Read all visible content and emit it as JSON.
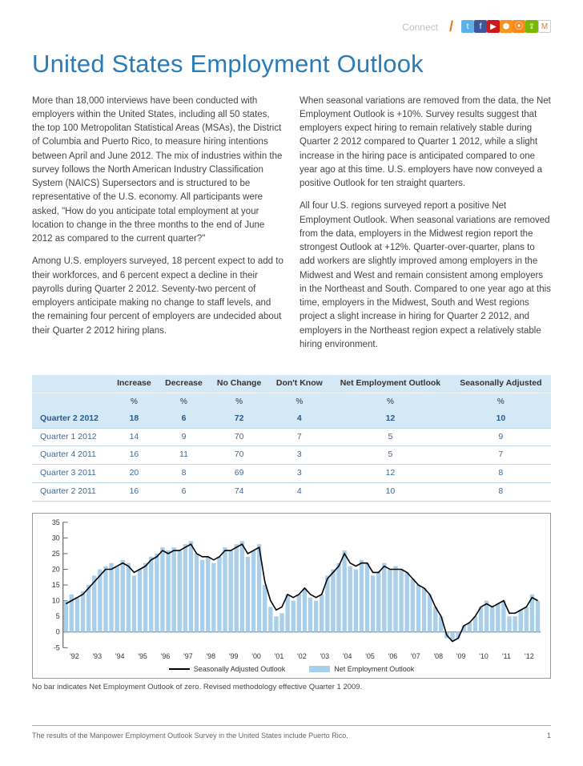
{
  "header": {
    "connect_label": "Connect",
    "social": [
      {
        "name": "twitter",
        "glyph": "t",
        "bg": "#5fb0e6"
      },
      {
        "name": "facebook",
        "glyph": "f",
        "bg": "#3b5998"
      },
      {
        "name": "youtube",
        "glyph": "▶",
        "bg": "#cc181e"
      },
      {
        "name": "slideshare",
        "glyph": "⬢",
        "bg": "#f7941e"
      },
      {
        "name": "rss",
        "glyph": "⦿",
        "bg": "#f68a1e"
      },
      {
        "name": "share",
        "glyph": "⇪",
        "bg": "#7ab800"
      },
      {
        "name": "manpower",
        "glyph": "M",
        "bg": "#ffffff"
      }
    ]
  },
  "title": {
    "text": "United States Employment Outlook",
    "color": "#2a7cb8"
  },
  "body": {
    "left": [
      "More than 18,000 interviews have been conducted with employers within the United States, including all 50 states, the top 100 Metropolitan Statistical Areas (MSAs), the District of Columbia and Puerto Rico, to measure hiring intentions between April and June 2012. The mix of industries within the survey follows the North American Industry Classification System (NAICS) Supersectors and is structured to be representative of the U.S. economy. All participants were asked, \"How do you anticipate total employment at your location to change in the three months to the end of June 2012 as compared to the current quarter?\"",
      "Among U.S. employers surveyed, 18 percent expect to add to their workforces, and 6 percent expect a decline in their payrolls during Quarter 2 2012. Seventy-two percent of employers anticipate making no change to staff levels, and the remaining four percent of employers are undecided about their Quarter 2 2012 hiring plans."
    ],
    "right": [
      "When seasonal variations are removed from the data, the Net Employment Outlook is +10%. Survey results suggest that employers expect hiring to remain relatively stable during Quarter 2 2012 compared to Quarter 1 2012, while a slight increase in the hiring pace is anticipated compared to one year ago at this time. U.S. employers have now conveyed a positive Outlook for ten straight quarters.",
      "All four U.S. regions surveyed report a positive Net Employment Outlook. When seasonal variations are removed from the data, employers in the Midwest region report the strongest Outlook at +12%. Quarter-over-quarter, plans to add workers are slightly improved among employers in the Midwest and West and remain consistent among employers in the Northeast and South. Compared to one year ago at this time, employers in the Midwest, South and West regions project a slight increase in hiring for Quarter 2 2012, and employers in the Northeast region expect a relatively stable hiring environment."
    ]
  },
  "table": {
    "columns": [
      "",
      "Increase",
      "Decrease",
      "No Change",
      "Don't Know",
      "Net Employment Outlook",
      "Seasonally Adjusted"
    ],
    "unit": "%",
    "header_bg": "#d4e8f5",
    "text_color": "#3a6a9a",
    "rows": [
      {
        "label": "Quarter 2 2012",
        "values": [
          18,
          6,
          72,
          4,
          12,
          10
        ],
        "highlight": true
      },
      {
        "label": "Quarter 1 2012",
        "values": [
          14,
          9,
          70,
          7,
          5,
          9
        ],
        "highlight": false
      },
      {
        "label": "Quarter 4 2011",
        "values": [
          16,
          11,
          70,
          3,
          5,
          7
        ],
        "highlight": false
      },
      {
        "label": "Quarter 3 2011",
        "values": [
          20,
          8,
          69,
          3,
          12,
          8
        ],
        "highlight": false
      },
      {
        "label": "Quarter 2 2011",
        "values": [
          16,
          6,
          74,
          4,
          10,
          8
        ],
        "highlight": false
      }
    ]
  },
  "chart": {
    "type": "bar_line_combo",
    "ylim": [
      -5,
      35
    ],
    "ytick_step": 5,
    "yticks": [
      -5,
      0,
      5,
      10,
      15,
      20,
      25,
      30,
      35
    ],
    "xlabels": [
      "'92",
      "'93",
      "'94",
      "'95",
      "'96",
      "'97",
      "'98",
      "'99",
      "'00",
      "'01",
      "'02",
      "'03",
      "'04",
      "'05",
      "'06",
      "'07",
      "'08",
      "'09",
      "'10",
      "'11",
      "'12"
    ],
    "bar_color": "#a9cfea",
    "line_color": "#000000",
    "grid_color": "#666666",
    "background_color": "#ffffff",
    "axis_fontsize": 9,
    "bars": [
      10,
      12,
      11,
      13,
      15,
      18,
      20,
      21,
      22,
      21,
      23,
      22,
      18,
      20,
      22,
      24,
      25,
      27,
      26,
      27,
      26,
      28,
      29,
      25,
      23,
      24,
      22,
      24,
      27,
      26,
      28,
      29,
      24,
      26,
      28,
      15,
      8,
      5,
      6,
      12,
      10,
      12,
      14,
      11,
      10,
      12,
      18,
      20,
      22,
      26,
      21,
      20,
      23,
      22,
      18,
      19,
      22,
      20,
      21,
      20,
      19,
      17,
      15,
      14,
      12,
      8,
      5,
      -2,
      -3,
      -2,
      2,
      3,
      5,
      8,
      10,
      8,
      9,
      10,
      5,
      5,
      7,
      8,
      12,
      10
    ],
    "line": [
      9,
      10,
      11,
      12,
      14,
      16,
      18,
      20,
      20,
      21,
      22,
      21,
      19,
      20,
      21,
      23,
      24,
      26,
      25,
      26,
      26,
      27,
      28,
      25,
      24,
      24,
      23,
      24,
      26,
      26,
      27,
      28,
      25,
      26,
      27,
      16,
      10,
      7,
      8,
      12,
      11,
      12,
      14,
      12,
      11,
      12,
      17,
      19,
      21,
      25,
      22,
      21,
      22,
      22,
      19,
      19,
      21,
      20,
      20,
      20,
      19,
      17,
      15,
      14,
      12,
      8,
      5,
      -1,
      -3,
      -2,
      2,
      3,
      5,
      8,
      9,
      8,
      9,
      10,
      6,
      6,
      7,
      8,
      11,
      10
    ],
    "legend": {
      "line_label": "Seasonally Adjusted Outlook",
      "bar_label": "Net Employment Outlook"
    }
  },
  "footnote": "No bar indicates Net Employment Outlook of zero. Revised methodology effective Quarter 1 2009.",
  "footer": {
    "text": "The results of the Manpower Employment Outlook Survey in the United States include Puerto Rico.",
    "page": "1"
  }
}
